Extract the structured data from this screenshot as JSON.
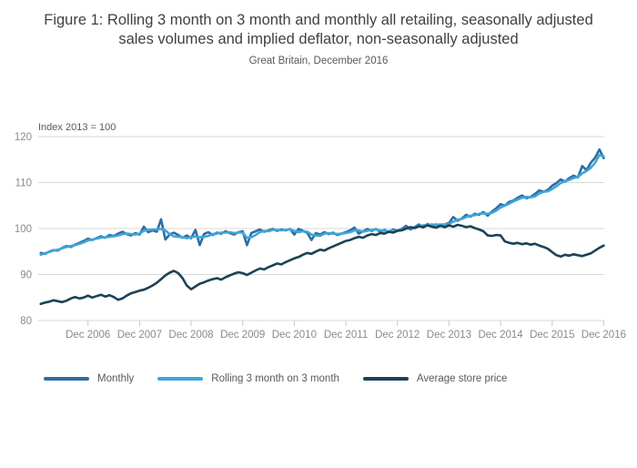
{
  "header": {
    "title": "Figure 1: Rolling 3 month on 3 month and monthly all retailing, seasonally adjusted sales volumes and implied deflator, non-seasonally adjusted",
    "subtitle": "Great Britain, December 2016"
  },
  "axis_note": "Index 2013 = 100",
  "colors": {
    "monthly": "#2e6da4",
    "rolling": "#3fa6d8",
    "avg_store_price": "#1c4257",
    "gridline": "#d9d9d9",
    "tick": "#c9c9c9",
    "axis_text": "#8a8a8a"
  },
  "legend": [
    {
      "label": "Monthly",
      "color": "#2e6da4"
    },
    {
      "label": "Rolling 3 month on 3 month",
      "color": "#3fa6d8"
    },
    {
      "label": "Average store price",
      "color": "#1c4257"
    }
  ],
  "chart_data": {
    "type": "line",
    "title": "Figure 1: Rolling 3 month on 3 month and monthly all retailing, seasonally adjusted sales volumes and implied deflator, non-seasonally adjusted",
    "subtitle": "Great Britain, December 2016",
    "ylabel": "Index 2013 = 100",
    "xlabel": "",
    "x_period": "monthly, Jan 2006 to Dec 2016",
    "x_tick_labels": [
      "Dec 2006",
      "Dec 2007",
      "Dec 2008",
      "Dec 2009",
      "Dec 2010",
      "Dec 2011",
      "Dec 2012",
      "Dec 2013",
      "Dec 2014",
      "Dec 2015",
      "Dec 2016"
    ],
    "ylim": [
      80,
      120
    ],
    "yticks": [
      80,
      90,
      100,
      110,
      120
    ],
    "grid": true,
    "legend_position": "bottom",
    "series": [
      {
        "name": "Monthly",
        "color": "#2e6da4",
        "values": [
          94.7,
          94.5,
          95.0,
          95.3,
          95.2,
          95.8,
          96.2,
          96.0,
          96.5,
          96.9,
          97.3,
          97.8,
          97.5,
          97.9,
          98.3,
          98.0,
          98.6,
          98.4,
          98.9,
          99.3,
          98.8,
          98.5,
          99.0,
          98.7,
          100.4,
          99.2,
          99.6,
          99.3,
          102.0,
          97.6,
          98.7,
          99.1,
          98.6,
          98.0,
          98.5,
          97.9,
          99.7,
          96.4,
          98.8,
          99.2,
          98.6,
          99.1,
          98.9,
          99.4,
          99.0,
          98.7,
          99.2,
          99.4,
          96.4,
          99.0,
          99.4,
          99.8,
          99.3,
          99.6,
          99.9,
          99.5,
          99.8,
          99.6,
          99.9,
          98.7,
          99.9,
          99.5,
          99.1,
          97.5,
          99.0,
          98.7,
          99.2,
          98.8,
          99.1,
          98.6,
          98.9,
          99.2,
          99.6,
          100.2,
          98.9,
          99.4,
          99.9,
          99.5,
          99.9,
          99.3,
          99.7,
          99.2,
          99.8,
          99.5,
          99.9,
          100.6,
          99.8,
          100.3,
          100.9,
          100.2,
          101.0,
          100.5,
          100.9,
          100.7,
          100.9,
          101.2,
          102.5,
          101.7,
          102.2,
          103.0,
          102.6,
          103.2,
          103.0,
          103.6,
          102.8,
          103.7,
          104.4,
          105.3,
          105.0,
          105.8,
          106.1,
          106.7,
          107.2,
          106.6,
          106.9,
          107.5,
          108.3,
          108.0,
          108.4,
          109.3,
          109.9,
          110.7,
          110.2,
          111.0,
          111.5,
          111.1,
          113.6,
          112.7,
          114.3,
          115.4,
          117.2,
          115.3
        ]
      },
      {
        "name": "Rolling 3 month on 3 month",
        "color": "#3fa6d8",
        "values": [
          94.3,
          94.6,
          94.9,
          95.2,
          95.4,
          95.7,
          96.0,
          96.2,
          96.4,
          96.7,
          97.0,
          97.4,
          97.6,
          97.8,
          98.0,
          98.1,
          98.2,
          98.3,
          98.5,
          98.8,
          98.9,
          98.8,
          98.7,
          98.9,
          99.5,
          99.7,
          99.8,
          99.8,
          99.9,
          99.6,
          98.8,
          98.3,
          98.2,
          98.1,
          97.9,
          98.1,
          98.3,
          98.1,
          98.2,
          98.4,
          98.8,
          98.9,
          99.1,
          99.1,
          99.2,
          99.0,
          99.1,
          99.1,
          98.0,
          98.1,
          98.6,
          99.2,
          99.5,
          99.4,
          99.7,
          99.7,
          99.6,
          99.7,
          99.8,
          99.5,
          99.2,
          99.4,
          99.3,
          98.7,
          98.5,
          98.4,
          98.9,
          99.0,
          98.9,
          98.8,
          98.9,
          99.0,
          99.2,
          99.6,
          99.6,
          99.3,
          99.5,
          99.7,
          99.8,
          99.6,
          99.5,
          99.4,
          99.6,
          99.5,
          99.7,
          100.1,
          100.2,
          100.3,
          100.6,
          100.7,
          100.8,
          100.9,
          100.8,
          100.9,
          100.9,
          101.0,
          101.5,
          101.9,
          102.1,
          102.5,
          102.8,
          102.9,
          103.2,
          103.3,
          103.2,
          103.4,
          103.9,
          104.6,
          105.0,
          105.4,
          105.9,
          106.3,
          106.7,
          106.9,
          106.8,
          107.0,
          107.6,
          108.0,
          108.1,
          108.6,
          109.2,
          109.9,
          110.3,
          110.6,
          111.0,
          111.2,
          112.0,
          112.5,
          113.2,
          114.3,
          116.0,
          115.7
        ]
      },
      {
        "name": "Average store price",
        "color": "#1c4257",
        "values": [
          83.6,
          83.9,
          84.1,
          84.4,
          84.2,
          84.0,
          84.3,
          84.8,
          85.1,
          84.8,
          85.0,
          85.4,
          85.0,
          85.3,
          85.6,
          85.2,
          85.5,
          85.1,
          84.5,
          84.8,
          85.4,
          85.9,
          86.2,
          86.5,
          86.7,
          87.1,
          87.6,
          88.2,
          89.0,
          89.8,
          90.4,
          90.8,
          90.3,
          89.2,
          87.6,
          86.8,
          87.4,
          88.0,
          88.3,
          88.7,
          89.0,
          89.2,
          88.9,
          89.4,
          89.8,
          90.2,
          90.5,
          90.3,
          89.9,
          90.4,
          90.9,
          91.3,
          91.1,
          91.6,
          92.0,
          92.4,
          92.2,
          92.7,
          93.1,
          93.5,
          93.8,
          94.3,
          94.7,
          94.5,
          95.0,
          95.4,
          95.2,
          95.7,
          96.1,
          96.5,
          96.9,
          97.3,
          97.5,
          97.9,
          98.2,
          98.0,
          98.5,
          98.8,
          98.6,
          99.0,
          98.9,
          99.3,
          99.1,
          99.5,
          99.6,
          100.0,
          100.3,
          100.1,
          100.5,
          100.3,
          100.7,
          100.4,
          100.2,
          100.6,
          100.3,
          100.7,
          100.4,
          100.8,
          100.6,
          100.3,
          100.5,
          100.1,
          99.8,
          99.4,
          98.5,
          98.4,
          98.6,
          98.5,
          97.2,
          96.9,
          96.7,
          96.9,
          96.6,
          96.8,
          96.5,
          96.7,
          96.3,
          96.0,
          95.6,
          94.9,
          94.2,
          93.9,
          94.3,
          94.1,
          94.4,
          94.2,
          94.0,
          94.3,
          94.6,
          95.2,
          95.8,
          96.3
        ]
      }
    ]
  }
}
